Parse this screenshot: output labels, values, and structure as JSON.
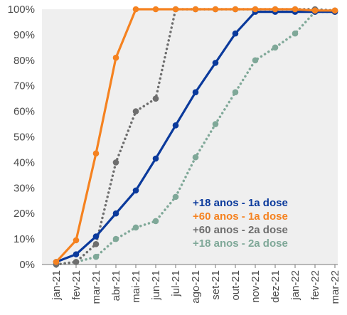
{
  "chart_data": {
    "type": "line",
    "title": "",
    "xlabel": "",
    "ylabel": "",
    "x": [
      "jan-21",
      "fev-21",
      "mar-21",
      "abr-21",
      "mai-21",
      "jun-21",
      "jul-21",
      "ago-21",
      "set-21",
      "out-21",
      "nov-21",
      "dez-21",
      "jan-22",
      "fev-22",
      "mar-22"
    ],
    "ylim": [
      0,
      100
    ],
    "yticks": [
      "0%",
      "10%",
      "20%",
      "30%",
      "40%",
      "50%",
      "60%",
      "70%",
      "80%",
      "90%",
      "100%"
    ],
    "grid": false,
    "plot_background": "#efefef",
    "legend_placement": "bottom-right",
    "series": [
      {
        "name": "+18 anos - 1a dose",
        "color": "#0b3a9c",
        "style": "solid",
        "values": [
          1,
          4,
          11,
          20,
          29,
          41.5,
          54.5,
          67.5,
          79,
          90.5,
          99,
          99,
          99,
          99,
          99
        ]
      },
      {
        "name": "+60 anos - 1a dose",
        "color": "#f58220",
        "style": "solid",
        "values": [
          1,
          9.5,
          43.5,
          81,
          100,
          100,
          100,
          100,
          100,
          100,
          100,
          100,
          100,
          99.5,
          99.5
        ]
      },
      {
        "name": "+60 anos - 2a dose",
        "color": "#6e6e6e",
        "style": "dotted",
        "values": [
          0,
          1,
          8,
          40,
          60,
          65,
          100,
          100,
          100,
          100,
          100,
          100,
          100,
          100,
          99.5
        ]
      },
      {
        "name": "+18 anos - 2a dose",
        "color": "#7fa898",
        "style": "dotted",
        "values": [
          0,
          1,
          3,
          10,
          14.5,
          17,
          26.5,
          42,
          55,
          67.5,
          80,
          85,
          90.5,
          99,
          99
        ]
      }
    ]
  }
}
